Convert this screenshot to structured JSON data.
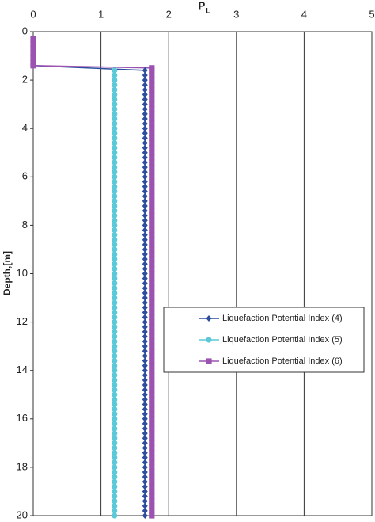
{
  "chart_data": {
    "type": "line",
    "x_label": "P",
    "x_label_sub": "L",
    "y_label": "Depth,[m]",
    "xlim": [
      0,
      5
    ],
    "xticks": [
      0,
      1,
      2,
      3,
      4,
      5
    ],
    "ylim": [
      0,
      20
    ],
    "yticks": [
      0,
      2,
      4,
      6,
      8,
      10,
      12,
      14,
      16,
      18,
      20
    ],
    "y_inverted": true,
    "x_axis_top": true,
    "grid": true,
    "legend": "right",
    "series": [
      {
        "name": "Liquefaction Potential Index (4)",
        "color": "#2b4f9e",
        "marker": "diamond",
        "depth": [
          0.3,
          0.5,
          0.7,
          0.9,
          1.1,
          1.3,
          1.4,
          1.6,
          1.8,
          2,
          2.2,
          2.4,
          2.6,
          2.8,
          3,
          3.2,
          3.4,
          3.6,
          3.8,
          4,
          4.2,
          4.4,
          4.6,
          4.8,
          5,
          5.2,
          5.4,
          5.6,
          5.8,
          6,
          6.2,
          6.4,
          6.6,
          6.8,
          7,
          7.2,
          7.4,
          7.6,
          7.8,
          8,
          8.2,
          8.4,
          8.6,
          8.8,
          9,
          9.2,
          9.4,
          9.6,
          9.8,
          10,
          10.2,
          10.4,
          10.6,
          10.8,
          11,
          11.2,
          11.4,
          11.6,
          11.8,
          12,
          12.2,
          12.4,
          12.6,
          12.8,
          13,
          13.2,
          13.4,
          13.6,
          13.8,
          14,
          14.2,
          14.4,
          14.6,
          14.8,
          15,
          15.2,
          15.4,
          15.6,
          15.8,
          16,
          16.2,
          16.4,
          16.6,
          16.8,
          17,
          17.2,
          17.4,
          17.6,
          17.8,
          18,
          18.2,
          18.4,
          18.6,
          18.8,
          19,
          19.2,
          19.4,
          19.6,
          19.8,
          20
        ],
        "values": [
          0,
          0,
          0,
          0,
          0,
          0,
          0,
          1.65,
          1.65,
          1.65,
          1.65,
          1.65,
          1.65,
          1.65,
          1.65,
          1.65,
          1.65,
          1.65,
          1.65,
          1.65,
          1.65,
          1.65,
          1.65,
          1.65,
          1.65,
          1.65,
          1.65,
          1.65,
          1.65,
          1.65,
          1.65,
          1.65,
          1.65,
          1.65,
          1.65,
          1.65,
          1.65,
          1.65,
          1.65,
          1.65,
          1.65,
          1.65,
          1.65,
          1.65,
          1.65,
          1.65,
          1.65,
          1.65,
          1.65,
          1.65,
          1.65,
          1.65,
          1.65,
          1.65,
          1.65,
          1.65,
          1.65,
          1.65,
          1.65,
          1.65,
          1.65,
          1.65,
          1.65,
          1.65,
          1.65,
          1.65,
          1.65,
          1.65,
          1.65,
          1.65,
          1.65,
          1.65,
          1.65,
          1.65,
          1.65,
          1.65,
          1.65,
          1.65,
          1.65,
          1.65,
          1.65,
          1.65,
          1.65,
          1.65,
          1.65,
          1.65,
          1.65,
          1.65,
          1.65,
          1.65,
          1.65,
          1.65,
          1.65,
          1.65,
          1.65,
          1.65,
          1.65,
          1.65,
          1.65,
          1.65
        ]
      },
      {
        "name": "Liquefaction Potential Index (5)",
        "color": "#5cc9d9",
        "marker": "circle",
        "depth": [
          1.6,
          1.8,
          2,
          2.2,
          2.4,
          2.6,
          2.8,
          3,
          3.2,
          3.4,
          3.6,
          3.8,
          4,
          4.2,
          4.4,
          4.6,
          4.8,
          5,
          5.2,
          5.4,
          5.6,
          5.8,
          6,
          6.2,
          6.4,
          6.6,
          6.8,
          7,
          7.2,
          7.4,
          7.6,
          7.8,
          8,
          8.2,
          8.4,
          8.6,
          8.8,
          9,
          9.2,
          9.4,
          9.6,
          9.8,
          10,
          10.2,
          10.4,
          10.6,
          10.8,
          11,
          11.2,
          11.4,
          11.6,
          11.8,
          12,
          12.2,
          12.4,
          12.6,
          12.8,
          13,
          13.2,
          13.4,
          13.6,
          13.8,
          14,
          14.2,
          14.4,
          14.6,
          14.8,
          15,
          15.2,
          15.4,
          15.6,
          15.8,
          16,
          16.2,
          16.4,
          16.6,
          16.8,
          17,
          17.2,
          17.4,
          17.6,
          17.8,
          18,
          18.2,
          18.4,
          18.6,
          18.8,
          19,
          19.2,
          19.4,
          19.6,
          19.8,
          20
        ],
        "values": [
          1.2,
          1.2,
          1.2,
          1.2,
          1.2,
          1.2,
          1.2,
          1.2,
          1.2,
          1.2,
          1.2,
          1.2,
          1.2,
          1.2,
          1.2,
          1.2,
          1.2,
          1.2,
          1.2,
          1.2,
          1.2,
          1.2,
          1.2,
          1.2,
          1.2,
          1.2,
          1.2,
          1.2,
          1.2,
          1.2,
          1.2,
          1.2,
          1.2,
          1.2,
          1.2,
          1.2,
          1.2,
          1.2,
          1.2,
          1.2,
          1.2,
          1.2,
          1.2,
          1.2,
          1.2,
          1.2,
          1.2,
          1.2,
          1.2,
          1.2,
          1.2,
          1.2,
          1.2,
          1.2,
          1.2,
          1.2,
          1.2,
          1.2,
          1.2,
          1.2,
          1.2,
          1.2,
          1.2,
          1.2,
          1.2,
          1.2,
          1.2,
          1.2,
          1.2,
          1.2,
          1.2,
          1.2,
          1.2,
          1.2,
          1.2,
          1.2,
          1.2,
          1.2,
          1.2,
          1.2,
          1.2,
          1.2,
          1.2,
          1.2,
          1.2,
          1.2,
          1.2,
          1.2,
          1.2,
          1.2,
          1.2,
          1.2,
          1.2
        ]
      },
      {
        "name": "Liquefaction Potential Index (6)",
        "color": "#9b52b0",
        "marker": "square",
        "depth": [
          0.3,
          0.5,
          0.7,
          0.9,
          1.1,
          1.3,
          1.4,
          1.5,
          1.6,
          1.8,
          2,
          2.2,
          2.4,
          2.6,
          2.8,
          3,
          3.2,
          3.4,
          3.6,
          3.8,
          4,
          4.2,
          4.4,
          4.6,
          4.8,
          5,
          5.2,
          5.4,
          5.6,
          5.8,
          6,
          6.2,
          6.4,
          6.6,
          6.8,
          7,
          7.2,
          7.4,
          7.6,
          7.8,
          8,
          8.2,
          8.4,
          8.6,
          8.8,
          9,
          9.2,
          9.4,
          9.6,
          9.8,
          10,
          10.2,
          10.4,
          10.6,
          10.8,
          11,
          11.2,
          11.4,
          11.6,
          11.8,
          12,
          12.2,
          12.4,
          12.6,
          12.8,
          13,
          13.2,
          13.4,
          13.6,
          13.8,
          14,
          14.2,
          14.4,
          14.6,
          14.8,
          15,
          15.2,
          15.4,
          15.6,
          15.8,
          16,
          16.2,
          16.4,
          16.6,
          16.8,
          17,
          17.2,
          17.4,
          17.6,
          17.8,
          18,
          18.2,
          18.4,
          18.6,
          18.8,
          19,
          19.2,
          19.4,
          19.6,
          19.8,
          20
        ],
        "values": [
          0,
          0,
          0,
          0,
          0,
          0,
          0,
          1.75,
          1.75,
          1.75,
          1.75,
          1.75,
          1.75,
          1.75,
          1.75,
          1.75,
          1.75,
          1.75,
          1.75,
          1.75,
          1.75,
          1.75,
          1.75,
          1.75,
          1.75,
          1.75,
          1.75,
          1.75,
          1.75,
          1.75,
          1.75,
          1.75,
          1.75,
          1.75,
          1.75,
          1.75,
          1.75,
          1.75,
          1.75,
          1.75,
          1.75,
          1.75,
          1.75,
          1.75,
          1.75,
          1.75,
          1.75,
          1.75,
          1.75,
          1.75,
          1.75,
          1.75,
          1.75,
          1.75,
          1.75,
          1.75,
          1.75,
          1.75,
          1.75,
          1.75,
          1.75,
          1.75,
          1.75,
          1.75,
          1.75,
          1.75,
          1.75,
          1.75,
          1.75,
          1.75,
          1.75,
          1.75,
          1.75,
          1.75,
          1.75,
          1.75,
          1.75,
          1.75,
          1.75,
          1.75,
          1.75,
          1.75,
          1.75,
          1.75,
          1.75,
          1.75,
          1.75,
          1.75,
          1.75,
          1.75,
          1.75,
          1.75,
          1.75,
          1.75,
          1.75,
          1.75,
          1.75,
          1.75,
          1.75,
          1.75,
          1.75
        ]
      }
    ]
  }
}
